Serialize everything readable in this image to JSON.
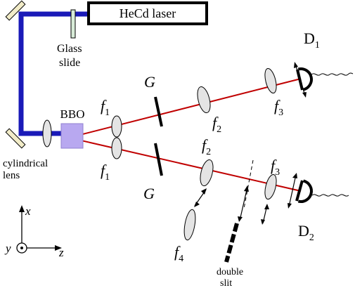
{
  "labels": {
    "laser": "HeCd laser",
    "glass_slide_line1": "Glass",
    "glass_slide_line2": "slide",
    "bbo": "BBO",
    "cyl_lens_line1": "cylindrical",
    "cyl_lens_line2": "lens",
    "f1_upper": "f",
    "f1_upper_sub": "1",
    "f1_lower": "f",
    "f1_lower_sub": "1",
    "g_upper": "G",
    "g_lower": "G",
    "f2_upper": "f",
    "f2_upper_sub": "2",
    "f2_lower": "f",
    "f2_lower_sub": "2",
    "f3_upper": "f",
    "f3_upper_sub": "3",
    "f3_lower": "f",
    "f3_lower_sub": "3",
    "f4": "f",
    "f4_sub": "4",
    "d1": "D",
    "d1_sub": "1",
    "d2": "D",
    "d2_sub": "2",
    "double_slit_line1": "double",
    "double_slit_line2": "slit",
    "axis_x": "x",
    "axis_y": "y",
    "axis_z": "z"
  },
  "colors": {
    "pump_beam": "#1a1ab8",
    "signal_beam": "#c00000",
    "bbo_crystal": "#b8a8f0",
    "mirror_fill": "#f2ecc8",
    "lens_fill": "#e4e4e4"
  }
}
